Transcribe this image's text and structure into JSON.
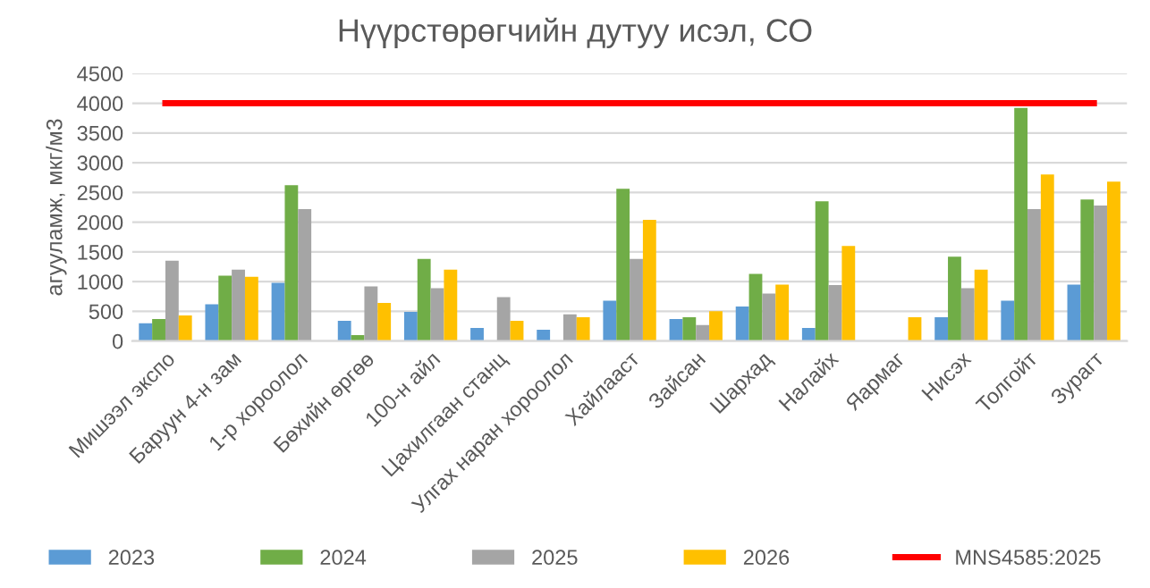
{
  "chart_data": {
    "type": "bar",
    "title": "Нүүрстөрөгчийн дутуу исэл, СО",
    "ylabel": "агууламж, мкг/м3",
    "categories": [
      "Мишээл экспо",
      "Баруун 4-н зам",
      "1-р хороолол",
      "Бөхийн өргөө",
      "100-н айл",
      "Цахилгаан станц",
      "Улгах наран хороолол",
      "Хайлааст",
      "Зайсан",
      "Шархад",
      "Налайх",
      "Яармаг",
      "Нисэх",
      "Толгойт",
      "Зурагт"
    ],
    "series": [
      {
        "name": "2023",
        "color": "#5b9bd5",
        "values": [
          300,
          620,
          980,
          340,
          490,
          220,
          190,
          680,
          370,
          580,
          220,
          null,
          400,
          680,
          950
        ]
      },
      {
        "name": "2024",
        "color": "#70ad47",
        "values": [
          370,
          1100,
          2620,
          100,
          1380,
          null,
          null,
          2560,
          400,
          1130,
          2350,
          null,
          1420,
          3920,
          2380
        ]
      },
      {
        "name": "2025",
        "color": "#a5a5a5",
        "values": [
          1350,
          1200,
          2220,
          920,
          890,
          740,
          450,
          1380,
          270,
          800,
          940,
          null,
          890,
          2220,
          2280
        ]
      },
      {
        "name": "2026",
        "color": "#ffc000",
        "values": [
          430,
          1080,
          null,
          640,
          1200,
          340,
          400,
          2040,
          500,
          950,
          1600,
          400,
          1200,
          2800,
          2680
        ]
      },
      {
        "name": "MNS4585:2025",
        "type": "line",
        "color": "#ff0000",
        "values": [
          4000,
          4000,
          4000,
          4000,
          4000,
          4000,
          4000,
          4000,
          4000,
          4000,
          4000,
          4000,
          4000,
          4000,
          4000
        ]
      }
    ],
    "ylim": [
      0,
      4500
    ],
    "yticks": [
      0,
      500,
      1000,
      1500,
      2000,
      2500,
      3000,
      3500,
      4000,
      4500
    ],
    "grid": "y",
    "legend": "bottom"
  }
}
